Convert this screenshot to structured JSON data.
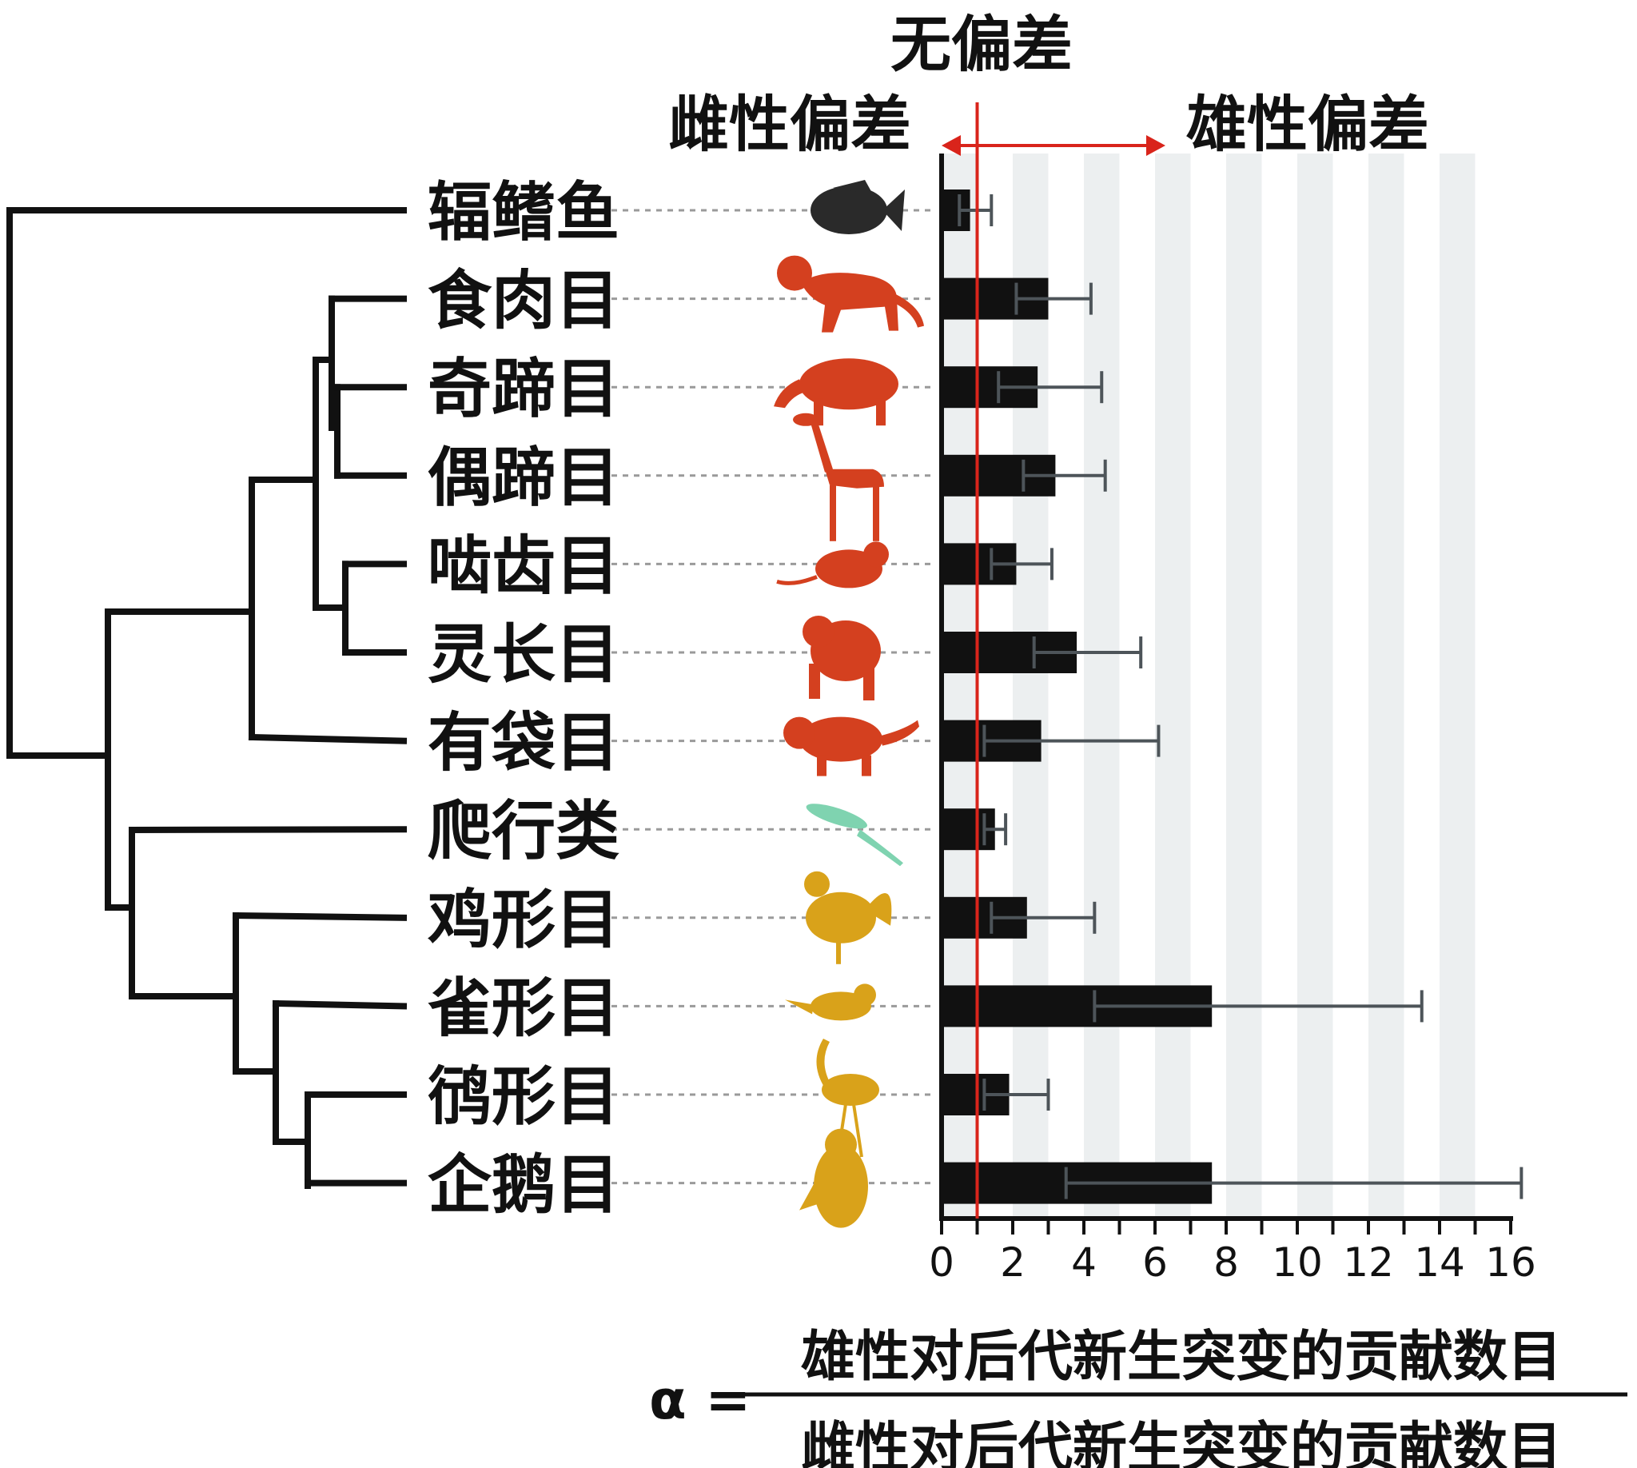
{
  "headers": {
    "no_bias": "无偏差",
    "female_bias": "雌性偏差",
    "male_bias": "雄性偏差"
  },
  "formula": {
    "symbol": "α =",
    "numerator": "雄性对后代新生突变的贡献数目",
    "denominator": "雌性对后代新生突变的贡献数目"
  },
  "colors": {
    "bar": "#111111",
    "error_bar": "#4d5459",
    "reference_line": "#d9241b",
    "band": "#eceff0",
    "fish": "#2a2a2a",
    "mammal": "#d4401f",
    "reptile": "#7fd3b0",
    "bird": "#d9a21a"
  },
  "chart_data": {
    "type": "bar",
    "orientation": "horizontal",
    "categories": [
      "辐鳍鱼",
      "食肉目",
      "奇蹄目",
      "偶蹄目",
      "啮齿目",
      "灵长目",
      "有袋目",
      "爬行类",
      "鸡形目",
      "雀形目",
      "鸻形目",
      "企鹅目"
    ],
    "icons": [
      "fish-icon",
      "tiger-icon",
      "tapir-icon",
      "giraffe-icon",
      "mouse-icon",
      "chimpanzee-icon",
      "tasmanian-devil-icon",
      "lizard-icon",
      "rooster-icon",
      "finch-icon",
      "flamingo-icon",
      "penguin-icon"
    ],
    "groups": [
      "fish",
      "mammal",
      "mammal",
      "mammal",
      "mammal",
      "mammal",
      "mammal",
      "reptile",
      "bird",
      "bird",
      "bird",
      "bird"
    ],
    "values": [
      0.8,
      3.0,
      2.7,
      3.2,
      2.1,
      3.8,
      2.8,
      1.5,
      2.4,
      7.6,
      1.9,
      7.6
    ],
    "error_low": [
      0.5,
      2.1,
      1.6,
      2.3,
      1.4,
      2.6,
      1.2,
      1.2,
      1.4,
      4.3,
      1.2,
      3.5
    ],
    "error_high": [
      1.4,
      4.2,
      4.5,
      4.6,
      3.1,
      5.6,
      6.1,
      1.8,
      4.3,
      13.5,
      3.0,
      16.3
    ],
    "xlim": [
      0,
      16
    ],
    "x_ticks": [
      "0",
      "2",
      "4",
      "6",
      "8",
      "10",
      "12",
      "14",
      "16"
    ],
    "reference_value": 1,
    "grid": "alternating vertical bands"
  }
}
